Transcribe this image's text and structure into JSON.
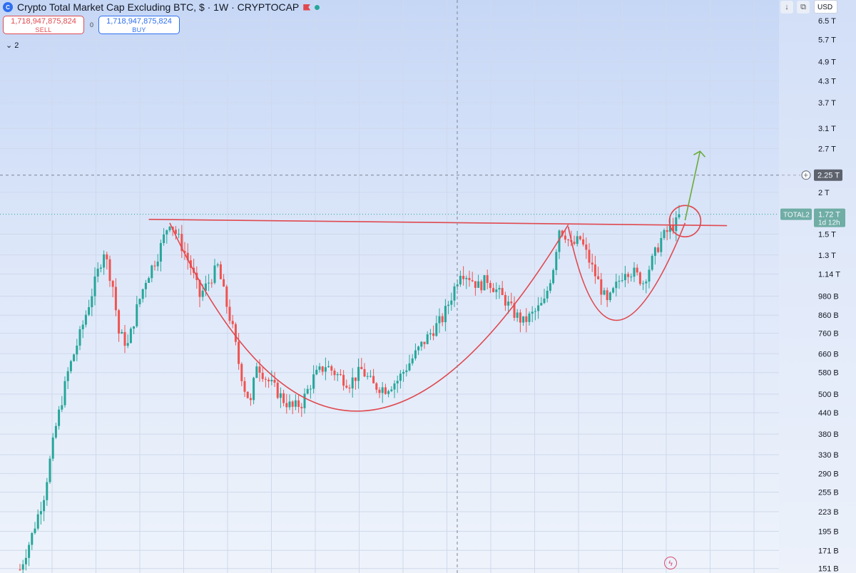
{
  "header": {
    "logo_icon": "coin-logo-icon",
    "title": "Crypto Total Market Cap Excluding BTC, $ · 1W · CRYPTOCAP",
    "flag_icon": "flag-icon",
    "status_color": "#26a69a"
  },
  "trade": {
    "sell_price": "1,718,947,875,824",
    "sell_label": "SELL",
    "spread": "0",
    "buy_price": "1,718,947,875,824",
    "buy_label": "BUY"
  },
  "indicators_toggle": {
    "icon": "chevron-down-icon",
    "count": "2"
  },
  "toolbar": {
    "download_icon": "arrow-down-icon",
    "screenshot_icon": "camera-icon",
    "currency": "USD"
  },
  "price_scale": {
    "crosshair_label": "2.25 T",
    "symbol_tag": "TOTAL2",
    "last_price": "1.72 T",
    "countdown": "1d 12h",
    "add_icon": "plus-circle-icon"
  },
  "flash_icon": "flash-icon",
  "colors": {
    "up": "#26a69a",
    "down": "#ef5350",
    "drawing": "#e0494f",
    "arrow": "#6aaa3a"
  },
  "chart_data": {
    "type": "candlestick",
    "y_scale": "log",
    "y_ticks": [
      {
        "label": "6.5 T",
        "value": 6500000000000.0
      },
      {
        "label": "5.7 T",
        "value": 5700000000000.0
      },
      {
        "label": "4.9 T",
        "value": 4900000000000.0
      },
      {
        "label": "4.3 T",
        "value": 4300000000000.0
      },
      {
        "label": "3.7 T",
        "value": 3700000000000.0
      },
      {
        "label": "3.1 T",
        "value": 3100000000000.0
      },
      {
        "label": "2.7 T",
        "value": 2700000000000.0
      },
      {
        "label": "2 T",
        "value": 2000000000000.0
      },
      {
        "label": "1.5 T",
        "value": 1500000000000.0
      },
      {
        "label": "1.3 T",
        "value": 1300000000000.0
      },
      {
        "label": "1.14 T",
        "value": 1140000000000.0
      },
      {
        "label": "980 B",
        "value": 980000000000.0
      },
      {
        "label": "860 B",
        "value": 860000000000.0
      },
      {
        "label": "760 B",
        "value": 760000000000.0
      },
      {
        "label": "660 B",
        "value": 660000000000.0
      },
      {
        "label": "580 B",
        "value": 580000000000.0
      },
      {
        "label": "500 B",
        "value": 500000000000.0
      },
      {
        "label": "440 B",
        "value": 440000000000.0
      },
      {
        "label": "380 B",
        "value": 380000000000.0
      },
      {
        "label": "330 B",
        "value": 330000000000.0
      },
      {
        "label": "290 B",
        "value": 290000000000.0
      },
      {
        "label": "255 B",
        "value": 255000000000.0
      },
      {
        "label": "223 B",
        "value": 223000000000.0
      },
      {
        "label": "195 B",
        "value": 195000000000.0
      },
      {
        "label": "171 B",
        "value": 171000000000.0
      },
      {
        "label": "151 B",
        "value": 151000000000.0
      }
    ],
    "y_range": [
      145000000000.0,
      7200000000000.0
    ],
    "crosshair_value": 2250000000000.0,
    "last_value": 1720000000000.0,
    "price_anchors": [
      [
        0,
        150
      ],
      [
        4,
        190
      ],
      [
        8,
        250
      ],
      [
        12,
        400
      ],
      [
        16,
        580
      ],
      [
        20,
        750
      ],
      [
        24,
        1000
      ],
      [
        28,
        1340
      ],
      [
        31,
        1050
      ],
      [
        33,
        760
      ],
      [
        36,
        700
      ],
      [
        39,
        900
      ],
      [
        42,
        1100
      ],
      [
        46,
        1300
      ],
      [
        49,
        1560
      ],
      [
        50,
        1640
      ],
      [
        53,
        1450
      ],
      [
        57,
        1200
      ],
      [
        60,
        980
      ],
      [
        63,
        1080
      ],
      [
        66,
        1200
      ],
      [
        69,
        920
      ],
      [
        71,
        780
      ],
      [
        73,
        620
      ],
      [
        75,
        520
      ],
      [
        77,
        470
      ],
      [
        79,
        620
      ],
      [
        82,
        560
      ],
      [
        85,
        520
      ],
      [
        88,
        480
      ],
      [
        91,
        455
      ],
      [
        94,
        470
      ],
      [
        98,
        560
      ],
      [
        102,
        610
      ],
      [
        106,
        570
      ],
      [
        110,
        540
      ],
      [
        114,
        590
      ],
      [
        118,
        530
      ],
      [
        122,
        520
      ],
      [
        126,
        550
      ],
      [
        130,
        620
      ],
      [
        134,
        700
      ],
      [
        138,
        780
      ],
      [
        141,
        840
      ],
      [
        144,
        980
      ],
      [
        147,
        1170
      ],
      [
        150,
        1120
      ],
      [
        153,
        1050
      ],
      [
        156,
        1100
      ],
      [
        159,
        1020
      ],
      [
        162,
        950
      ],
      [
        165,
        870
      ],
      [
        168,
        820
      ],
      [
        172,
        880
      ],
      [
        175,
        940
      ],
      [
        178,
        1200
      ],
      [
        180,
        1560
      ],
      [
        182,
        1500
      ],
      [
        184,
        1380
      ],
      [
        187,
        1450
      ],
      [
        190,
        1250
      ],
      [
        193,
        1080
      ],
      [
        196,
        930
      ],
      [
        199,
        1050
      ],
      [
        202,
        1180
      ],
      [
        205,
        1150
      ],
      [
        208,
        1080
      ],
      [
        211,
        1250
      ],
      [
        214,
        1450
      ],
      [
        217,
        1560
      ],
      [
        219,
        1620
      ],
      [
        220,
        1720
      ]
    ],
    "drawings": {
      "resistance_line": [
        [
          43,
          1660000000000.0
        ],
        [
          236,
          1590000000000.0
        ]
      ],
      "cup_curve": [
        [
          50,
          1620000000000.0
        ],
        [
          108,
          445000000000.0
        ],
        [
          183,
          1600000000000.0
        ]
      ],
      "handle_curve": [
        [
          183,
          1580000000000.0
        ],
        [
          196,
          830000000000.0
        ],
        [
          222,
          1620000000000.0
        ]
      ],
      "breakout_circle": [
        222,
        1640000000000.0
      ],
      "target_arrow": [
        [
          222,
          1650000000000.0
        ],
        [
          227,
          2650000000000.0
        ]
      ]
    }
  }
}
